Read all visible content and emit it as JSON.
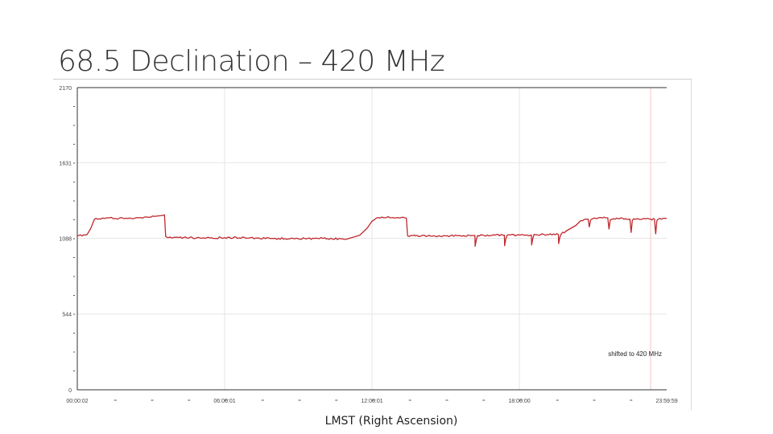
{
  "slide": {
    "title": "68.5 Declination – 420 MHz",
    "x_caption": "LMST (Right Ascension)"
  },
  "chart_data": {
    "type": "line",
    "xlabel": "LMST (Right Ascension)",
    "ylabel": "",
    "x_unit": "hours",
    "xlim": [
      0.0003,
      23.9997
    ],
    "ylim": [
      0,
      2170
    ],
    "y_ticks": [
      0,
      544,
      1088,
      1631,
      2170
    ],
    "y_tick_labels": [
      "0",
      "544",
      "1088",
      "1631",
      "2170"
    ],
    "x_tick_values": [
      0.0003,
      6.0003,
      12.0003,
      18.0003,
      23.9997
    ],
    "x_tick_labels": [
      "00:00:02",
      "06:00:01",
      "12:00:01",
      "18:00:00",
      "23:59:59"
    ],
    "grid": true,
    "annotation": "shifted to 420 MHz",
    "annotation_position": "bottom-right",
    "series_color": "#c0282d",
    "series": [
      {
        "x": [
          0.0,
          0.4,
          0.55,
          0.7,
          1.0,
          2.0,
          3.0,
          3.4,
          3.55,
          3.6,
          3.7,
          4.0,
          5.0,
          6.0,
          7.0,
          8.0,
          9.0,
          10.0,
          11.0,
          11.5,
          11.8,
          12.0,
          12.2,
          12.4,
          12.6,
          13.0,
          13.4,
          13.45,
          14.0,
          15.0,
          16.0,
          16.19,
          16.2,
          16.25,
          16.3,
          17.0,
          17.39,
          17.4,
          17.45,
          17.5,
          18.0,
          18.49,
          18.5,
          18.55,
          18.6,
          19.0,
          19.59,
          19.6,
          19.65,
          19.7,
          19.9,
          20.3,
          20.5,
          20.7,
          20.8,
          20.85,
          20.9,
          21.0,
          21.5,
          21.6,
          21.65,
          21.7,
          22.0,
          22.5,
          22.55,
          22.6,
          22.65,
          23.0,
          23.5,
          23.55,
          23.6,
          23.65,
          24.0
        ],
        "y": [
          1105,
          1115,
          1160,
          1225,
          1232,
          1232,
          1240,
          1250,
          1255,
          1100,
          1092,
          1095,
          1090,
          1093,
          1090,
          1087,
          1085,
          1087,
          1083,
          1110,
          1160,
          1210,
          1235,
          1240,
          1238,
          1235,
          1232,
          1105,
          1105,
          1105,
          1107,
          1108,
          1030,
          1080,
          1108,
          1110,
          1110,
          1035,
          1085,
          1110,
          1112,
          1112,
          1040,
          1090,
          1115,
          1115,
          1115,
          1050,
          1095,
          1118,
          1140,
          1180,
          1215,
          1225,
          1225,
          1170,
          1220,
          1230,
          1235,
          1235,
          1155,
          1220,
          1230,
          1225,
          1130,
          1215,
          1228,
          1225,
          1225,
          1120,
          1215,
          1225,
          1230
        ]
      }
    ]
  }
}
